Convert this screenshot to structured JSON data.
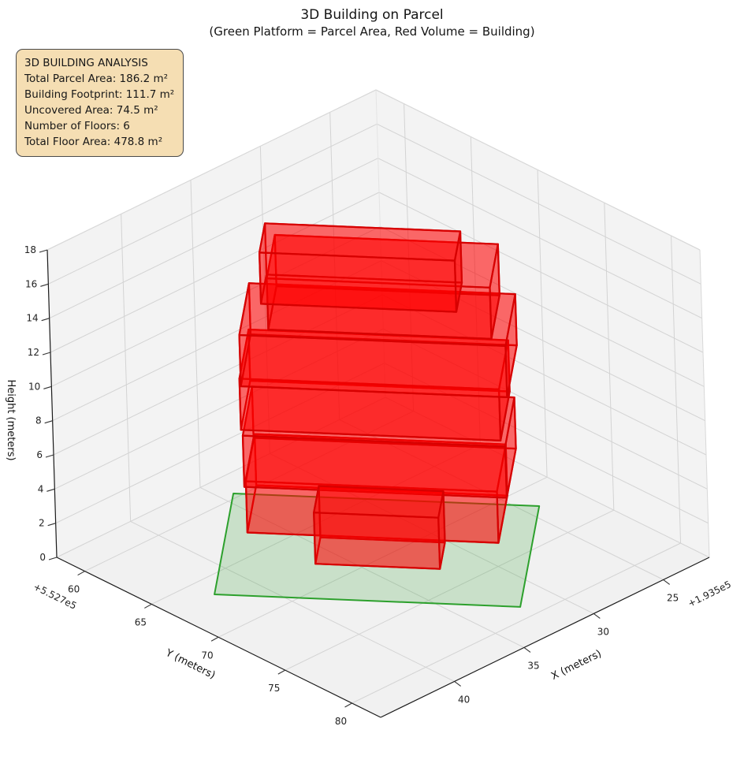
{
  "title": {
    "line1": "3D Building on Parcel",
    "line2": "(Green Platform = Parcel Area, Red Volume = Building)"
  },
  "info_box": {
    "lines": [
      "3D BUILDING ANALYSIS",
      "Total Parcel Area: 186.2 m²",
      "Building Footprint: 111.7 m²",
      "Uncovered Area: 74.5 m²",
      "Number of Floors: 6",
      "Total Floor Area: 478.8 m²"
    ]
  },
  "chart_data": {
    "type": "3d-building-plot",
    "axes": {
      "x": {
        "label": "X (meters)",
        "ticks": [
          25,
          30,
          35,
          40
        ],
        "offset_text": "+1.935e5",
        "range": [
          21.7,
          45.3
        ]
      },
      "y": {
        "label": "Y (meters)",
        "ticks": [
          60,
          65,
          70,
          75,
          80
        ],
        "offset_text": "+5.527e5",
        "range": [
          57.9,
          82.15
        ]
      },
      "z": {
        "label": "Height (meters)",
        "ticks": [
          0,
          2,
          4,
          6,
          8,
          10,
          12,
          14,
          16,
          18
        ],
        "range": [
          0,
          18
        ]
      }
    },
    "parcel": {
      "polygon_xy": [
        [
          42.31,
          66.59
        ],
        [
          34.24,
          59.59
        ],
        [
          24.1,
          71.92
        ],
        [
          32.17,
          78.91
        ]
      ],
      "z": 0,
      "fill_color": "#2ca02c",
      "fill_opacity": 0.2,
      "edge_color": "#2ca02c"
    },
    "building": {
      "frame": {
        "center": [
          33.2,
          69.25
        ],
        "long_axis": [
          -0.635,
          0.772
        ],
        "depth_axis": [
          -0.755,
          -0.655
        ]
      },
      "floor_height_m": 3,
      "num_floors": 6,
      "fill_color": "#ff0000",
      "fill_opacity": 0.35,
      "edge_color": "#d60000",
      "floors": [
        {
          "name": "floor-1",
          "e": [
            -6.88,
            6.23
          ],
          "n": [
            1.3,
            6.3
          ],
          "z": [
            0,
            3
          ]
        },
        {
          "name": "floor-2",
          "e": [
            -6.9,
            6.8
          ],
          "n": [
            0.7,
            5.9
          ],
          "z": [
            3,
            6
          ]
        },
        {
          "name": "floor-3",
          "e": [
            -7.05,
            6.5
          ],
          "n": [
            1.3,
            6.5
          ],
          "z": [
            6,
            9
          ]
        },
        {
          "name": "floor-4",
          "e": [
            -6.9,
            7.0
          ],
          "n": [
            0.5,
            6.0
          ],
          "z": [
            9,
            12
          ]
        },
        {
          "name": "floor-5",
          "e": [
            -5.45,
            6.2
          ],
          "n": [
            1.2,
            5.8
          ],
          "z": [
            12,
            15
          ]
        },
        {
          "name": "floor-6",
          "e": [
            -5.5,
            4.7
          ],
          "n": [
            -1.5,
            1.6
          ],
          "z": [
            15,
            18
          ]
        },
        {
          "name": "floor-1-annex",
          "e": [
            -3.05,
            3.45
          ],
          "n": [
            -1.7,
            1.1
          ],
          "z": [
            0,
            3
          ],
          "draw_last": true
        }
      ]
    }
  }
}
